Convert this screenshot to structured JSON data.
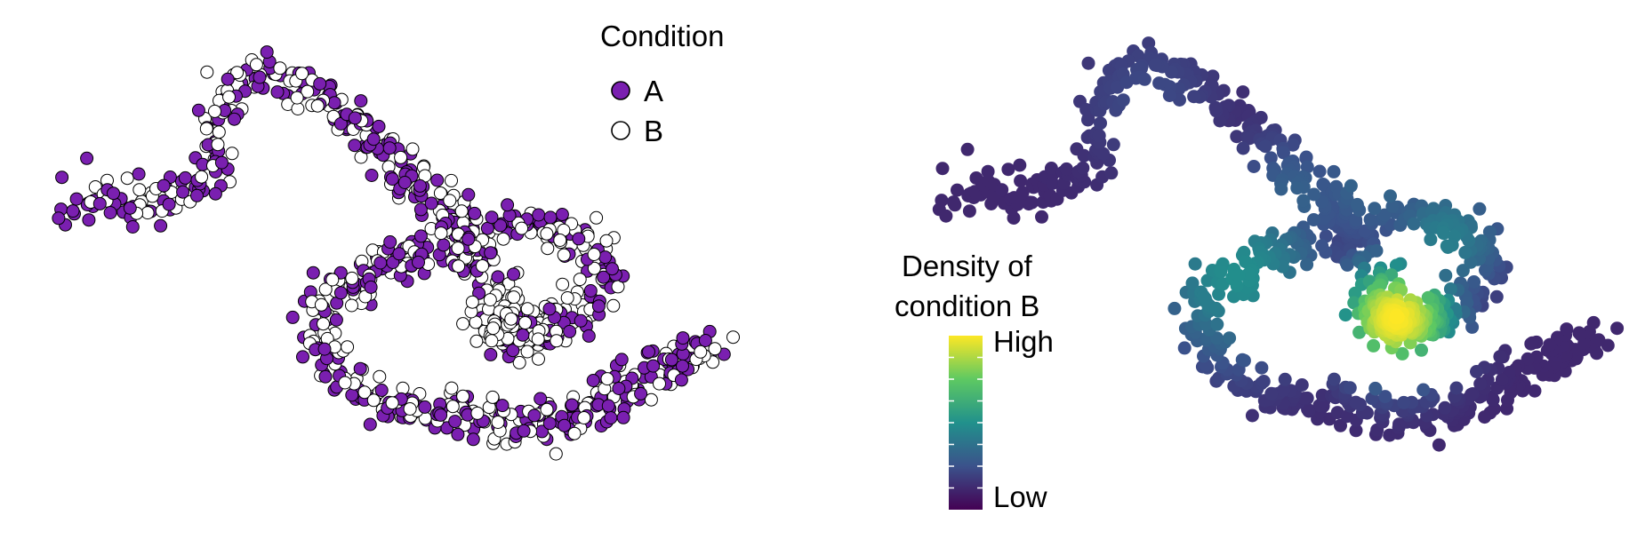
{
  "panels": {
    "left": {
      "legend_title": "Condition",
      "legend_items": [
        {
          "label": "A",
          "color": "#7a1fb0",
          "filled": true
        },
        {
          "label": "B",
          "color": "#ffffff",
          "filled": false
        }
      ]
    },
    "right": {
      "colorbar_title_line1": "Density of",
      "colorbar_title_line2": "condition B",
      "colorbar_high": "High",
      "colorbar_low": "Low",
      "colormap": [
        "#440154",
        "#3b528b",
        "#21918c",
        "#5ec962",
        "#fde725"
      ]
    }
  },
  "chart_data": [
    {
      "type": "scatter",
      "title": "",
      "xlabel": "",
      "ylabel": "",
      "grid": false,
      "axes_visible": false,
      "legend_title": "Condition",
      "legend_placement": "top-right",
      "series": [
        {
          "name": "A",
          "color": "#7a1fb0",
          "fill": "filled"
        },
        {
          "name": "B",
          "color": "#ffffff",
          "fill": "open"
        }
      ],
      "description_of_shape": "single curved trajectory (S-shaped path with a loop); condition B enriched in the inner loop"
    },
    {
      "type": "scatter",
      "title": "",
      "xlabel": "",
      "ylabel": "",
      "grid": false,
      "axes_visible": false,
      "color_variable": "Density of condition B",
      "color_scale": "viridis",
      "color_range": [
        "Low",
        "High"
      ],
      "legend_placement": "left"
    }
  ]
}
